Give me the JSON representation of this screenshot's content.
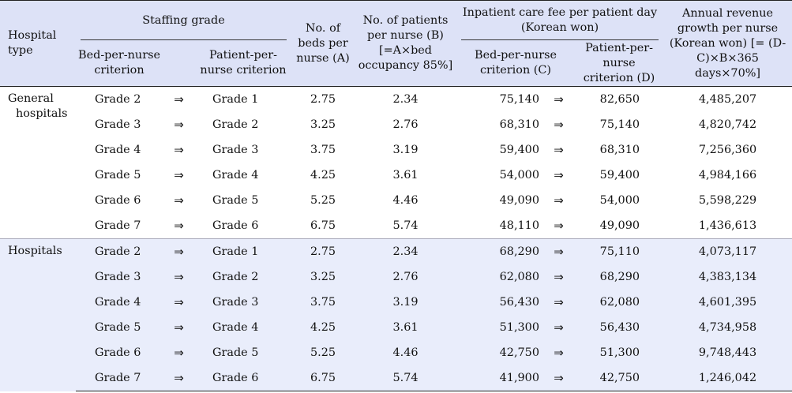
{
  "header": {
    "hospital_type": "Hospital type",
    "staffing_grade": "Staffing grade",
    "bed_per_nurse_criterion": "Bed-per-nurse criterion",
    "patient_per_nurse_criterion": "Patient-per-nurse criterion",
    "beds_per_nurse": "No. of beds per nurse (A)",
    "patients_per_nurse": "No. of patients per nurse (B) [=A×bed occupancy 85%]",
    "inpatient_fee": "Inpatient care fee per patient day (Korean won)",
    "fee_bed_criterion": "Bed-per-nurse criterion (C)",
    "fee_patient_criterion": "Patient-per-nurse criterion (D)",
    "annual_revenue": "Annual revenue growth per nurse (Korean won) [= (D-C)×B×365 days×70%]"
  },
  "arrow": "⇒",
  "groups": [
    {
      "type_line1": "General",
      "type_line2": "hospitals",
      "rows": [
        {
          "bed_grade": "Grade 2",
          "patient_grade": "Grade 1",
          "beds": "2.75",
          "patients": "2.34",
          "fee_c": "75,140",
          "fee_d": "82,650",
          "revenue": "4,485,207"
        },
        {
          "bed_grade": "Grade 3",
          "patient_grade": "Grade 2",
          "beds": "3.25",
          "patients": "2.76",
          "fee_c": "68,310",
          "fee_d": "75,140",
          "revenue": "4,820,742"
        },
        {
          "bed_grade": "Grade 4",
          "patient_grade": "Grade 3",
          "beds": "3.75",
          "patients": "3.19",
          "fee_c": "59,400",
          "fee_d": "68,310",
          "revenue": "7,256,360"
        },
        {
          "bed_grade": "Grade 5",
          "patient_grade": "Grade 4",
          "beds": "4.25",
          "patients": "3.61",
          "fee_c": "54,000",
          "fee_d": "59,400",
          "revenue": "4,984,166"
        },
        {
          "bed_grade": "Grade 6",
          "patient_grade": "Grade 5",
          "beds": "5.25",
          "patients": "4.46",
          "fee_c": "49,090",
          "fee_d": "54,000",
          "revenue": "5,598,229"
        },
        {
          "bed_grade": "Grade 7",
          "patient_grade": "Grade 6",
          "beds": "6.75",
          "patients": "5.74",
          "fee_c": "48,110",
          "fee_d": "49,090",
          "revenue": "1,436,613"
        }
      ]
    },
    {
      "type_line1": "Hospitals",
      "type_line2": "",
      "rows": [
        {
          "bed_grade": "Grade 2",
          "patient_grade": "Grade 1",
          "beds": "2.75",
          "patients": "2.34",
          "fee_c": "68,290",
          "fee_d": "75,110",
          "revenue": "4,073,117"
        },
        {
          "bed_grade": "Grade 3",
          "patient_grade": "Grade 2",
          "beds": "3.25",
          "patients": "2.76",
          "fee_c": "62,080",
          "fee_d": "68,290",
          "revenue": "4,383,134"
        },
        {
          "bed_grade": "Grade 4",
          "patient_grade": "Grade 3",
          "beds": "3.75",
          "patients": "3.19",
          "fee_c": "56,430",
          "fee_d": "62,080",
          "revenue": "4,601,395"
        },
        {
          "bed_grade": "Grade 5",
          "patient_grade": "Grade 4",
          "beds": "4.25",
          "patients": "3.61",
          "fee_c": "51,300",
          "fee_d": "56,430",
          "revenue": "4,734,958"
        },
        {
          "bed_grade": "Grade 6",
          "patient_grade": "Grade 5",
          "beds": "5.25",
          "patients": "4.46",
          "fee_c": "42,750",
          "fee_d": "51,300",
          "revenue": "9,748,443"
        },
        {
          "bed_grade": "Grade 7",
          "patient_grade": "Grade 6",
          "beds": "6.75",
          "patients": "5.74",
          "fee_c": "41,900",
          "fee_d": "42,750",
          "revenue": "1,246,042"
        }
      ]
    }
  ],
  "colors": {
    "header_bg": "#dde2f7",
    "hospitals_bg": "#e9edfb"
  }
}
